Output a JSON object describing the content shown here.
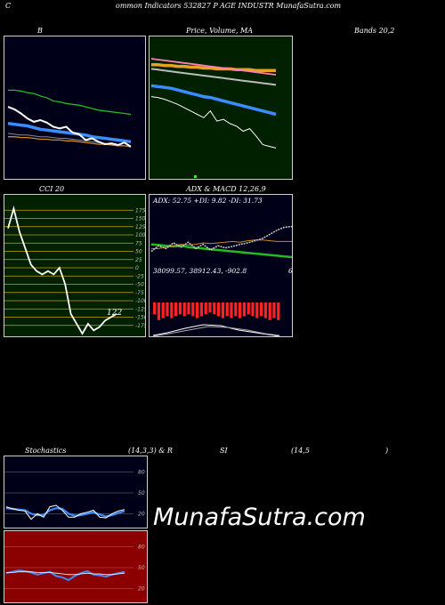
{
  "header": {
    "left": "C",
    "center": "ommon  Indicators 532827 P",
    "right": "AGE INDUSTR MunafaSutra.com"
  },
  "row1": {
    "b_label": "B",
    "price_label": "Price,  Volume,  MA",
    "bands_label": "Bands 20,2"
  },
  "row2": {
    "cci_label": "CCI 20",
    "adx_label": "ADX  & MACD 12,26,9",
    "adx_values": "ADX: 52.75  +DI: 9.82  -DI: 31.73",
    "macd_values": "38099.57,  38912.43,  -902.8",
    "macd_right": "6",
    "cci_value": "122"
  },
  "row3": {
    "stoch_label": "Stochastics",
    "stoch_params": "(14,3,3) & R",
    "si_label": "SI",
    "rsi_params": "(14,5",
    "rsi_close": ")"
  },
  "watermark": "MunafaSutra.com",
  "colors": {
    "bb_bg": "#000018",
    "price_bg": "#002000",
    "cci_bg": "#002000",
    "adx_bg": "#000018",
    "stoch_bg": "#000018",
    "rsi_bg": "#8b0000",
    "blue_line": "#3b8cff",
    "green_line": "#22bb22",
    "orange_line": "#cc8822",
    "macd_bar": "#ff2222",
    "pink_line": "#ff7eb9",
    "gold_line": "#e8a21f"
  },
  "chart_data": [
    {
      "type": "line",
      "name": "bollinger",
      "x": [
        0,
        1,
        2,
        3,
        4,
        5,
        6,
        7,
        8,
        9,
        10,
        11,
        12,
        13,
        14,
        15,
        16,
        17,
        18,
        19
      ],
      "series": [
        {
          "values": [
            76,
            73,
            68,
            62,
            58,
            60,
            57,
            52,
            50,
            52,
            45,
            43,
            36,
            38,
            34,
            31,
            32,
            30,
            33,
            28
          ]
        },
        {
          "values": [
            56,
            55,
            54,
            53,
            51,
            49,
            48,
            47,
            46,
            45,
            44,
            43,
            42,
            40,
            39,
            38,
            37,
            36,
            35,
            34
          ]
        },
        {
          "values": [
            40,
            40,
            39,
            39,
            38,
            37,
            37,
            36,
            36,
            35,
            35,
            34,
            33,
            32,
            31,
            31,
            30,
            29,
            29,
            28
          ]
        },
        {
          "values": [
            96,
            96,
            95,
            93,
            92,
            89,
            87,
            83,
            82,
            80,
            79,
            78,
            76,
            74,
            72,
            71,
            70,
            69,
            68,
            67
          ]
        },
        {
          "values": [
            44,
            43,
            42,
            42,
            41,
            40,
            40,
            39,
            38,
            38,
            37,
            36,
            35,
            34,
            33,
            32,
            31,
            30,
            29,
            28
          ]
        }
      ],
      "ylim": [
        0,
        150
      ]
    },
    {
      "type": "line",
      "name": "price_ma",
      "x": [
        0,
        1,
        2,
        3,
        4,
        5,
        6,
        7,
        8,
        9,
        10,
        11,
        12,
        13,
        14,
        15,
        16,
        17,
        18,
        19
      ],
      "series": [
        {
          "values": [
            87,
            86,
            84,
            81,
            78,
            74,
            70,
            66,
            62,
            70,
            58,
            60,
            55,
            52,
            46,
            49,
            40,
            30,
            28,
            26
          ]
        },
        {
          "values": [
            100,
            99,
            98,
            97,
            95,
            93,
            91,
            89,
            87,
            86,
            84,
            82,
            80,
            78,
            76,
            74,
            72,
            70,
            68,
            66
          ]
        },
        {
          "values": [
            120,
            119,
            118,
            117,
            116,
            115,
            114,
            113,
            112,
            111,
            110,
            109,
            108,
            107,
            106,
            105,
            104,
            103,
            102,
            101
          ]
        },
        {
          "values": [
            132,
            131,
            130,
            129,
            128,
            127,
            126,
            125,
            124,
            123,
            122,
            121,
            120,
            119,
            118,
            117,
            116,
            115,
            114,
            113
          ]
        },
        {
          "values": [
            125,
            125,
            124,
            124,
            123,
            123,
            122,
            122,
            121,
            121,
            120,
            120,
            120,
            119,
            119,
            119,
            118,
            118,
            118,
            118
          ]
        }
      ],
      "ylim": [
        0,
        150
      ]
    },
    {
      "type": "line",
      "name": "cci",
      "x": [
        0,
        1,
        2,
        3,
        4,
        5,
        6,
        7,
        8,
        9,
        10,
        11,
        12,
        13,
        14,
        15,
        16,
        17,
        18,
        19
      ],
      "series": [
        {
          "values": [
            120,
            180,
            110,
            60,
            10,
            -10,
            -20,
            -10,
            -20,
            0,
            -50,
            -140,
            -170,
            -200,
            -170,
            -190,
            -180,
            -160,
            -150,
            -140
          ]
        }
      ],
      "yticks": [
        175,
        150,
        125,
        100,
        75,
        50,
        25,
        0,
        -25,
        -50,
        -75,
        -100,
        -125,
        -150,
        -175
      ],
      "ylim": [
        -200,
        200
      ]
    },
    {
      "type": "line",
      "name": "adx",
      "x": [
        0,
        1,
        2,
        3,
        4,
        5,
        6,
        7,
        8,
        9,
        10,
        11,
        12,
        13,
        14,
        15,
        16,
        17,
        18,
        19
      ],
      "series": [
        {
          "values": [
            18,
            26,
            22,
            30,
            24,
            31,
            22,
            28,
            20,
            26,
            23,
            25,
            28,
            30,
            33,
            36,
            42,
            48,
            52,
            53
          ]
        },
        {
          "values": [
            28,
            27,
            26,
            25,
            26,
            24,
            23,
            22,
            21,
            20,
            19,
            18,
            17,
            16,
            15,
            14,
            13,
            12,
            11,
            10
          ]
        },
        {
          "values": [
            22,
            22,
            24,
            26,
            28,
            27,
            28,
            30,
            29,
            30,
            31,
            32,
            31,
            33,
            34,
            34,
            33,
            32,
            32,
            32
          ]
        }
      ],
      "ylim": [
        0,
        70
      ]
    },
    {
      "type": "bar",
      "name": "macd_histogram",
      "x": [
        0,
        1,
        2,
        3,
        4,
        5,
        6,
        7,
        8,
        9,
        10,
        11,
        12,
        13,
        14,
        15,
        16,
        17,
        18,
        19,
        20,
        21,
        22,
        23,
        24,
        25,
        26,
        27,
        28,
        29
      ],
      "values": [
        -0.6,
        -0.9,
        -0.8,
        -0.7,
        -0.8,
        -0.7,
        -0.6,
        -0.7,
        -0.6,
        -0.7,
        -0.8,
        -0.7,
        -0.6,
        -0.5,
        -0.6,
        -0.7,
        -0.8,
        -0.7,
        -0.8,
        -0.7,
        -0.8,
        -0.7,
        -0.6,
        -0.7,
        -0.8,
        -0.7,
        -0.8,
        -0.9,
        -0.8,
        -0.9
      ],
      "ylim": [
        -1,
        0.2
      ]
    },
    {
      "type": "line",
      "name": "stochastic",
      "x": [
        0,
        1,
        2,
        3,
        4,
        5,
        6,
        7,
        8,
        9,
        10,
        11,
        12,
        13,
        14,
        15,
        16,
        17,
        18,
        19
      ],
      "series": [
        {
          "values": [
            30,
            27,
            25,
            24,
            12,
            20,
            15,
            30,
            32,
            25,
            15,
            15,
            20,
            22,
            25,
            15,
            14,
            20,
            24,
            26
          ]
        },
        {
          "values": [
            28,
            27,
            26,
            25,
            20,
            18,
            18,
            25,
            28,
            27,
            20,
            17,
            18,
            20,
            22,
            19,
            16,
            18,
            21,
            24
          ]
        }
      ],
      "yticks": [
        80,
        50,
        20
      ],
      "ylim": [
        0,
        100
      ]
    },
    {
      "type": "line",
      "name": "rsi",
      "x": [
        0,
        1,
        2,
        3,
        4,
        5,
        6,
        7,
        8,
        9,
        10,
        11,
        12,
        13,
        14,
        15,
        16,
        17,
        18,
        19
      ],
      "series": [
        {
          "values": [
            42,
            44,
            46,
            45,
            43,
            40,
            42,
            44,
            38,
            36,
            32,
            38,
            42,
            45,
            40,
            39,
            37,
            40,
            42,
            44
          ]
        },
        {
          "values": [
            43,
            43,
            44,
            44,
            44,
            43,
            43,
            43,
            42,
            41,
            40,
            40,
            41,
            42,
            41,
            41,
            40,
            40,
            41,
            42
          ]
        }
      ],
      "yticks": [
        80,
        50,
        20
      ],
      "ylim": [
        0,
        100
      ]
    }
  ]
}
